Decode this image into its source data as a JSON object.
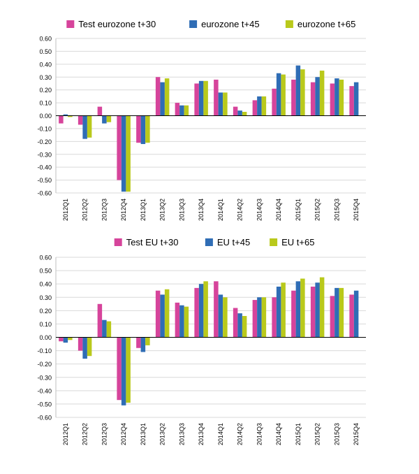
{
  "colors": {
    "series1": "#d6449b",
    "series2": "#2f6db5",
    "series3": "#b9c91b",
    "grid": "#d9d9d9",
    "axis": "#000000"
  },
  "chart_data": [
    {
      "type": "bar",
      "title": "",
      "xlabel": "",
      "ylabel": "",
      "ylim": [
        -0.6,
        0.6
      ],
      "yticks": [
        "-0.60",
        "-0.50",
        "-0.40",
        "-0.30",
        "-0.20",
        "-0.10",
        "0.00",
        "0.10",
        "0.20",
        "0.30",
        "0.40",
        "0.50",
        "0.60"
      ],
      "grid": true,
      "legend_position": "top",
      "categories": [
        "2012Q1",
        "2012Q2",
        "2012Q3",
        "2012Q4",
        "2013Q1",
        "2013Q2",
        "2013Q3",
        "2013Q4",
        "2014Q1",
        "2014Q2",
        "2014Q3",
        "2014Q4",
        "2015Q1",
        "2015Q2",
        "2015Q3",
        "2015Q4"
      ],
      "series": [
        {
          "name": "Test eurozone t+30",
          "values": [
            -0.06,
            -0.07,
            0.07,
            -0.5,
            -0.21,
            0.3,
            0.1,
            0.25,
            0.28,
            0.07,
            0.12,
            0.21,
            0.28,
            0.26,
            0.25,
            0.23
          ]
        },
        {
          "name": "eurozone t+45",
          "values": [
            0.01,
            -0.18,
            -0.06,
            -0.59,
            -0.22,
            0.26,
            0.08,
            0.27,
            0.18,
            0.04,
            0.15,
            0.33,
            0.39,
            0.3,
            0.29,
            0.26
          ]
        },
        {
          "name": "eurozone t+65",
          "values": [
            -0.01,
            -0.17,
            -0.05,
            -0.59,
            -0.21,
            0.29,
            0.08,
            0.27,
            0.18,
            0.03,
            0.15,
            0.32,
            0.36,
            0.35,
            0.28,
            null
          ]
        }
      ]
    },
    {
      "type": "bar",
      "title": "",
      "xlabel": "",
      "ylabel": "",
      "ylim": [
        -0.6,
        0.6
      ],
      "yticks": [
        "-0.60",
        "-0.50",
        "-0.40",
        "-0.30",
        "-0.20",
        "-0.10",
        "0.00",
        "0.10",
        "0.20",
        "0.30",
        "0.40",
        "0.50",
        "0.60"
      ],
      "grid": true,
      "legend_position": "top",
      "categories": [
        "2012Q1",
        "2012Q2",
        "2012Q3",
        "2012Q4",
        "2013Q1",
        "2013Q2",
        "2013Q3",
        "2013Q4",
        "2014Q1",
        "2014Q2",
        "2014Q3",
        "2014Q4",
        "2015Q1",
        "2015Q2",
        "2015Q3",
        "2015Q4"
      ],
      "series": [
        {
          "name": "Test EU t+30",
          "values": [
            -0.03,
            -0.1,
            0.25,
            -0.47,
            -0.08,
            0.35,
            0.26,
            0.37,
            0.42,
            0.22,
            0.28,
            0.3,
            0.35,
            0.38,
            0.31,
            0.32
          ]
        },
        {
          "name": "EU t+45",
          "values": [
            -0.04,
            -0.16,
            0.13,
            -0.51,
            -0.11,
            0.32,
            0.24,
            0.4,
            0.32,
            0.18,
            0.3,
            0.38,
            0.42,
            0.41,
            0.37,
            0.35
          ]
        },
        {
          "name": "EU t+65",
          "values": [
            -0.02,
            -0.14,
            0.12,
            -0.49,
            -0.06,
            0.36,
            0.23,
            0.42,
            0.3,
            0.16,
            0.3,
            0.41,
            0.44,
            0.45,
            0.37,
            null
          ]
        }
      ]
    }
  ]
}
